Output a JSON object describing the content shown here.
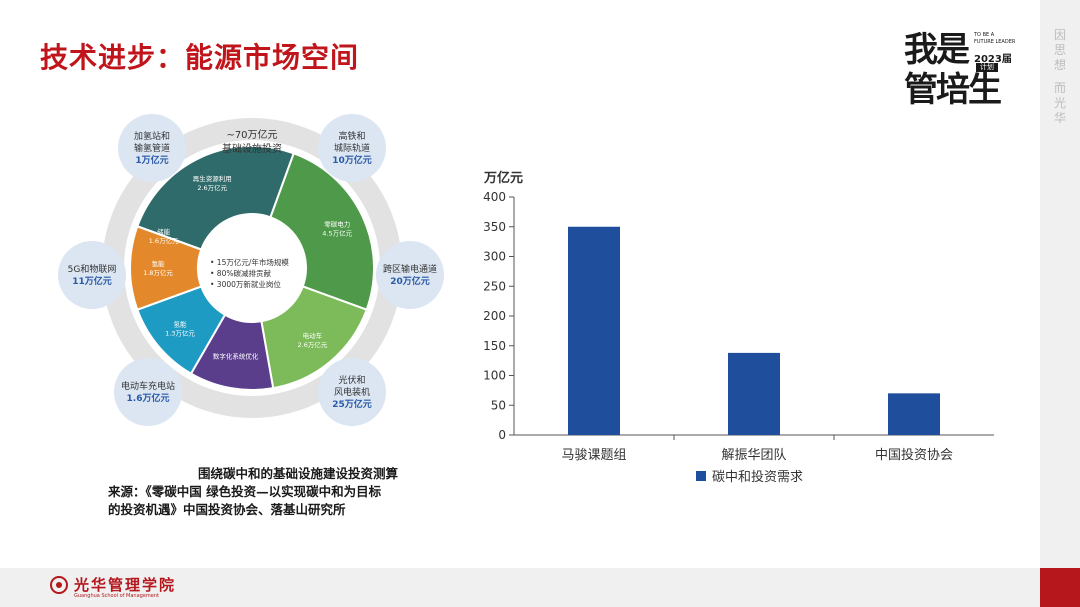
{
  "title": "技术进步：能源市场空间",
  "logo": {
    "line1": "我是",
    "line2": "管培生",
    "tag1": "TO BE A",
    "tag2": "FUTURE LEADER",
    "year": "2023届",
    "plan": "计划"
  },
  "side_text": [
    "因",
    "思",
    "想",
    "而",
    "光",
    "华"
  ],
  "footer": {
    "school_cn": "光华管理学院",
    "school_en": "Guanghua School of Management"
  },
  "diagram": {
    "top_label_line1": "~70万亿元",
    "top_label_line2": "基础设施投资",
    "center_lines": [
      "• 15万亿元/年市场规模",
      "• 80%碳减排贡献",
      "• 3000万新就业岗位"
    ],
    "segments": [
      {
        "name": "再生资源利用",
        "value": "2.6万亿元",
        "color": "#2e6b6a"
      },
      {
        "name": "零碳电力",
        "value": "4.5万亿元",
        "color": "#4f9a4a"
      },
      {
        "name": "电动车",
        "value": "2.6万亿元",
        "color": "#7cba5a"
      },
      {
        "name": "数字化系统优化",
        "value": "",
        "color": "#5a3e8c"
      },
      {
        "name": "氢能",
        "value": "1.3万亿元",
        "color": "#1e9bc2"
      },
      {
        "name": "氢能",
        "value": "1.8万亿元",
        "color": "#e4892b"
      },
      {
        "name": "储能",
        "value": "1.6万亿元",
        "color": "#2a5270"
      }
    ],
    "bubbles": [
      {
        "line1": "加氢站和",
        "line2": "输氢管道",
        "value": "1万亿元"
      },
      {
        "line1": "高铁和",
        "line2": "城际轨道",
        "value": "10万亿元"
      },
      {
        "line1": "5G和物联网",
        "line2": "",
        "value": "11万亿元"
      },
      {
        "line1": "跨区输电通道",
        "line2": "",
        "value": "20万亿元"
      },
      {
        "line1": "电动车充电站",
        "line2": "",
        "value": "1.6万亿元"
      },
      {
        "line1": "光伏和",
        "line2": "风电装机",
        "value": "25万亿元"
      }
    ]
  },
  "caption": {
    "line1": "围绕碳中和的基础设施建设投资测算",
    "line2": "来源：《零碳中国 绿色投资—以实现碳中和为目标",
    "line3": "的投资机遇》中国投资协会、落基山研究所"
  },
  "chart_data": {
    "type": "bar",
    "ylabel": "万亿元",
    "categories": [
      "马骏课题组",
      "解振华团队",
      "中国投资协会"
    ],
    "series": [
      {
        "name": "碳中和投资需求",
        "values": [
          350,
          138,
          70
        ],
        "color": "#1f4e9c"
      }
    ],
    "ylim": [
      0,
      400
    ],
    "yticks": [
      0,
      50,
      100,
      150,
      200,
      250,
      300,
      350,
      400
    ],
    "grid": false,
    "legend": "bottom"
  }
}
